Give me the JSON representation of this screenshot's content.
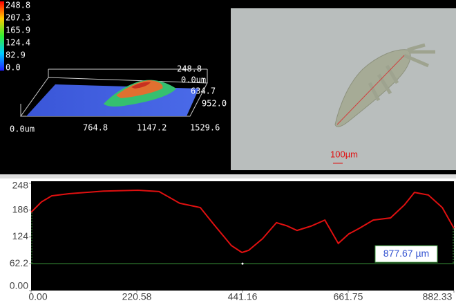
{
  "view3d": {
    "colorbar_labels": [
      "248.8",
      "207.3",
      "165.9",
      "124.4",
      "82.9",
      "0.0"
    ],
    "x_axis_labels": [
      "0.0um",
      "764.8",
      "1147.2",
      "1529.6"
    ],
    "z_labels": [
      "248.8",
      "0.0um"
    ],
    "y_axis_labels": [
      "634.7",
      "952.0"
    ]
  },
  "image": {
    "scale_bar": "100µm"
  },
  "chart_data": {
    "type": "line",
    "x": [
      0,
      21.6,
      43,
      79,
      151,
      223,
      267,
      310,
      353,
      382,
      418,
      440,
      454,
      483,
      512,
      533,
      555,
      584,
      613,
      627,
      641,
      663,
      685,
      714,
      750,
      779,
      800,
      829,
      858,
      882.33
    ],
    "series": [
      {
        "color": "#e01010",
        "values": [
          181,
          205,
          219,
          224,
          230,
          232,
          229,
          202,
          192,
          152,
          104,
          88,
          93,
          120,
          157,
          150,
          139,
          149,
          163,
          136,
          109,
          131,
          144,
          163,
          168,
          198,
          227,
          221,
          192,
          144
        ]
      }
    ],
    "xlim": [
      0,
      882.33
    ],
    "xticks": [
      {
        "value": 0,
        "label": "0.00"
      },
      220.58,
      441.16,
      661.75,
      882.33
    ],
    "ylim": [
      0,
      248
    ],
    "yticks": [
      {
        "value": 0,
        "label": "0.00"
      },
      62.2,
      124,
      186,
      248
    ],
    "reference_line": {
      "value": 62.2,
      "color": "#3c9a3c"
    },
    "marker": {
      "x": 441.16,
      "y": 62.2
    },
    "annotation": "877.67 µm"
  }
}
